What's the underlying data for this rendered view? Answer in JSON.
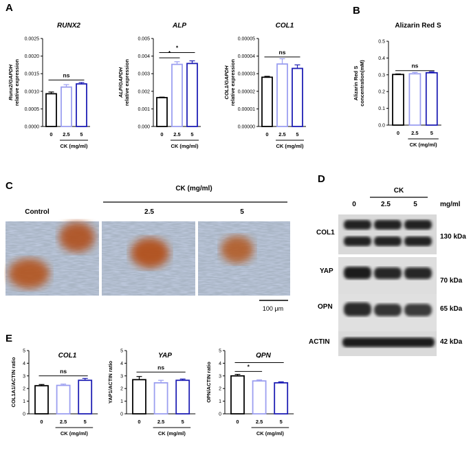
{
  "panels": {
    "A": "A",
    "B": "B",
    "C": "C",
    "D": "D",
    "E": "E"
  },
  "colors": {
    "ctrl": "#000000",
    "low": "#9b9ef0",
    "high": "#1e1eb4"
  },
  "group_label": "CK (mg/ml)",
  "chart_data": [
    {
      "id": "a1",
      "type": "bar",
      "title": "RUNX2",
      "title_italic": true,
      "ylabel": [
        "Runx2/GAPDH",
        "relative expression"
      ],
      "ylim": [
        0,
        0.0025
      ],
      "yticks": [
        "0.0000",
        "0.0005",
        "0.0010",
        "0.0015",
        "0.0020",
        "0.0025"
      ],
      "categories": [
        "0",
        "2.5",
        "5"
      ],
      "values": [
        0.00093,
        0.00112,
        0.00121
      ],
      "errors": [
        5e-05,
        7e-05,
        4e-05
      ],
      "sig": [
        {
          "text": "ns",
          "from": 0,
          "to": 2,
          "y": 0.00132
        }
      ]
    },
    {
      "id": "a2",
      "type": "bar",
      "title": "ALP",
      "title_italic": true,
      "ylabel": [
        "ALP/GAPDH",
        "relative expression"
      ],
      "ylim": [
        0,
        0.005
      ],
      "yticks": [
        "0.000",
        "0.001",
        "0.002",
        "0.003",
        "0.004",
        "0.005"
      ],
      "categories": [
        "0",
        "2.5",
        "5"
      ],
      "values": [
        0.00164,
        0.00353,
        0.00358
      ],
      "errors": [
        3e-05,
        0.00015,
        0.00015
      ],
      "sig": [
        {
          "text": "*",
          "from": 0,
          "to": 1,
          "y": 0.0039
        },
        {
          "text": "*",
          "from": 0,
          "to": 2,
          "y": 0.0042
        }
      ]
    },
    {
      "id": "a3",
      "type": "bar",
      "title": "COL1",
      "title_italic": true,
      "ylabel": [
        "COL1/GAPDH",
        "relative expression"
      ],
      "ylim": [
        0,
        5e-05
      ],
      "yticks": [
        "0.00000",
        "0.00001",
        "0.00002",
        "0.00003",
        "0.00004",
        "0.00005"
      ],
      "categories": [
        "0",
        "2.5",
        "5"
      ],
      "values": [
        2.8e-05,
        3.55e-05,
        3.3e-05
      ],
      "errors": [
        5e-07,
        3e-06,
        2e-06
      ],
      "sig": [
        {
          "text": "ns",
          "from": 0,
          "to": 2,
          "y": 3.95e-05
        }
      ]
    },
    {
      "id": "b",
      "type": "bar",
      "title": "Alizarin Red S",
      "title_italic": false,
      "ylabel": [
        "Alizarin Red S",
        "concentration(mM)"
      ],
      "ylim": [
        0,
        0.5
      ],
      "yticks": [
        "0.0",
        "0.1",
        "0.2",
        "0.3",
        "0.4",
        "0.5"
      ],
      "categories": [
        "0",
        "2.5",
        "5"
      ],
      "values": [
        0.302,
        0.306,
        0.312
      ],
      "errors": [
        0.003,
        0.008,
        0.006
      ],
      "sig": [
        {
          "text": "ns",
          "from": 0,
          "to": 2,
          "y": 0.325
        }
      ]
    },
    {
      "id": "e1",
      "type": "bar",
      "title": "COL1",
      "title_italic": true,
      "ylabel": [
        "COL1A1/ACTIN ratio"
      ],
      "ylim": [
        0,
        5
      ],
      "yticks": [
        "0",
        "1",
        "2",
        "3",
        "4",
        "5"
      ],
      "categories": [
        "0",
        "2.5",
        "5"
      ],
      "values": [
        2.22,
        2.25,
        2.65
      ],
      "errors": [
        0.1,
        0.1,
        0.15
      ],
      "sig": [
        {
          "text": "ns",
          "from": 0,
          "to": 2,
          "y": 3.0
        }
      ]
    },
    {
      "id": "e2",
      "type": "bar",
      "title": "YAP",
      "title_italic": true,
      "ylabel": [
        "YAP1/ACTIN ratio"
      ],
      "ylim": [
        0,
        5
      ],
      "yticks": [
        "0",
        "1",
        "2",
        "3",
        "4",
        "5"
      ],
      "categories": [
        "0",
        "2.5",
        "5"
      ],
      "values": [
        2.7,
        2.45,
        2.65
      ],
      "errors": [
        0.25,
        0.2,
        0.1
      ],
      "sig": [
        {
          "text": "ns",
          "from": 0,
          "to": 2,
          "y": 3.3
        }
      ]
    },
    {
      "id": "e3",
      "type": "bar",
      "title": "OPN",
      "title_italic": true,
      "ylabel": [
        "OPN/ACTIN ratio"
      ],
      "ylim": [
        0,
        5
      ],
      "yticks": [
        "0",
        "1",
        "2",
        "3",
        "4",
        "5"
      ],
      "categories": [
        "0",
        "2.5",
        "5"
      ],
      "values": [
        3.0,
        2.6,
        2.45
      ],
      "errors": [
        0.12,
        0.08,
        0.08
      ],
      "sig": [
        {
          "text": "*",
          "from": 0,
          "to": 1,
          "y": 3.35
        },
        {
          "text": "*",
          "from": 0,
          "to": 2,
          "y": 4.05
        }
      ]
    }
  ],
  "microscopy": {
    "header": "CK (mg/ml)",
    "labels": [
      "Control",
      "2.5",
      "5"
    ],
    "scale_bar": "100 μm"
  },
  "western": {
    "header": "CK",
    "conc": [
      "0",
      "2.5",
      "5"
    ],
    "unit": "mg/ml",
    "rows": [
      {
        "name": "COL1",
        "size": "130 kDa"
      },
      {
        "name": "YAP",
        "size": "70 kDa"
      },
      {
        "name": "OPN",
        "size": "65 kDa"
      },
      {
        "name": "ACTIN",
        "size": "42 kDa"
      }
    ]
  }
}
